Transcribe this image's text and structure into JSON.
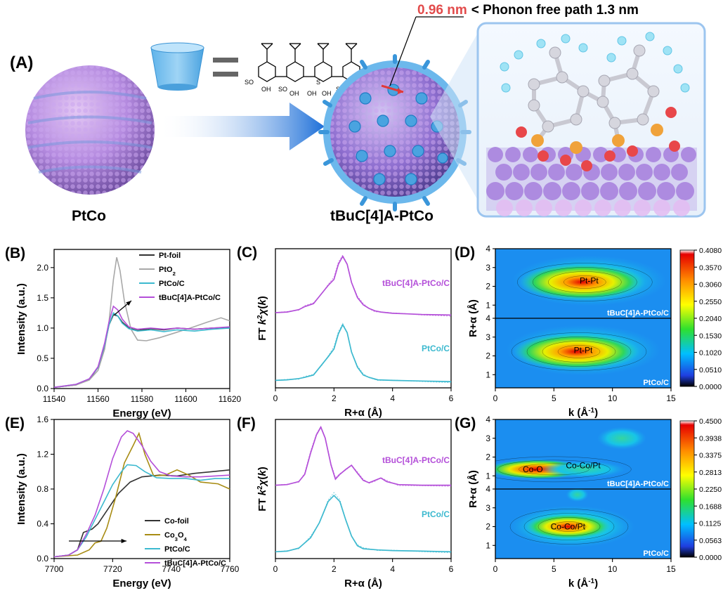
{
  "top": {
    "panel_label": "(A)",
    "left_caption": "PtCo",
    "right_caption": "tBuC[4]A-PtCo",
    "distance_value": "0.96 nm",
    "distance_text": "< Phonon free path 1.3 nm",
    "structure_labels": [
      "SO",
      "OH",
      "SO",
      "OH",
      "OH",
      "S",
      "SO",
      "OH"
    ]
  },
  "chart_data": [
    {
      "id": "B",
      "type": "line",
      "panel_label": "(B)",
      "xlabel": "Energy (eV)",
      "ylabel": "Intensity (a.u.)",
      "xlim": [
        11540,
        11620
      ],
      "ylim": [
        0,
        2.3
      ],
      "xticks": [
        11540,
        11560,
        11580,
        11600,
        11620
      ],
      "yticks": [
        0.0,
        0.5,
        1.0,
        1.5,
        2.0
      ],
      "legend": [
        "Pt-foil",
        "PtO2",
        "PtCo/C",
        "tBuC[4]A-PtCo/C"
      ],
      "series": [
        {
          "name": "Pt-foil",
          "color": "#333333",
          "points": [
            [
              11540,
              0.02
            ],
            [
              11550,
              0.06
            ],
            [
              11556,
              0.15
            ],
            [
              11560,
              0.35
            ],
            [
              11563,
              0.7
            ],
            [
              11565,
              1.05
            ],
            [
              11567,
              1.22
            ],
            [
              11569,
              1.2
            ],
            [
              11571,
              1.1
            ],
            [
              11574,
              1.0
            ],
            [
              11578,
              0.96
            ],
            [
              11584,
              0.99
            ],
            [
              11590,
              0.97
            ],
            [
              11596,
              1.0
            ],
            [
              11604,
              0.98
            ],
            [
              11612,
              1.0
            ],
            [
              11620,
              1.01
            ]
          ]
        },
        {
          "name": "PtO2",
          "color": "#a8a8a8",
          "points": [
            [
              11540,
              0.02
            ],
            [
              11550,
              0.06
            ],
            [
              11556,
              0.14
            ],
            [
              11560,
              0.3
            ],
            [
              11563,
              0.65
            ],
            [
              11565,
              1.1
            ],
            [
              11567,
              1.8
            ],
            [
              11568.5,
              2.17
            ],
            [
              11570,
              1.95
            ],
            [
              11572,
              1.45
            ],
            [
              11575,
              0.98
            ],
            [
              11578,
              0.8
            ],
            [
              11582,
              0.79
            ],
            [
              11588,
              0.84
            ],
            [
              11595,
              0.92
            ],
            [
              11602,
              1.0
            ],
            [
              11610,
              1.1
            ],
            [
              11616,
              1.17
            ],
            [
              11620,
              1.12
            ]
          ]
        },
        {
          "name": "PtCo/C",
          "color": "#3cb9cf",
          "points": [
            [
              11540,
              0.02
            ],
            [
              11550,
              0.07
            ],
            [
              11556,
              0.16
            ],
            [
              11560,
              0.35
            ],
            [
              11563,
              0.72
            ],
            [
              11565,
              1.05
            ],
            [
              11567,
              1.25
            ],
            [
              11569,
              1.2
            ],
            [
              11571,
              1.08
            ],
            [
              11574,
              0.99
            ],
            [
              11578,
              0.95
            ],
            [
              11584,
              0.97
            ],
            [
              11590,
              0.94
            ],
            [
              11596,
              0.97
            ],
            [
              11604,
              0.95
            ],
            [
              11612,
              0.98
            ],
            [
              11620,
              1.0
            ]
          ]
        },
        {
          "name": "tBuC[4]A-PtCo/C",
          "color": "#b44fd9",
          "points": [
            [
              11540,
              0.02
            ],
            [
              11550,
              0.07
            ],
            [
              11556,
              0.16
            ],
            [
              11560,
              0.36
            ],
            [
              11563,
              0.75
            ],
            [
              11565,
              1.1
            ],
            [
              11567,
              1.36
            ],
            [
              11569,
              1.3
            ],
            [
              11571,
              1.15
            ],
            [
              11574,
              1.02
            ],
            [
              11578,
              0.98
            ],
            [
              11584,
              1.0
            ],
            [
              11590,
              0.98
            ],
            [
              11596,
              1.0
            ],
            [
              11604,
              0.98
            ],
            [
              11612,
              1.0
            ],
            [
              11620,
              1.02
            ]
          ]
        }
      ]
    },
    {
      "id": "C",
      "type": "line",
      "panel_label": "(C)",
      "xlabel": "R+α (Å)",
      "ylabel": "FT k²χ(k)",
      "xlim": [
        0,
        6
      ],
      "xticks": [
        0,
        2,
        4,
        6
      ],
      "series": [
        {
          "name": "tBuC[4]A-PtCo/C",
          "color": "#b44fd9",
          "offset": 1.1,
          "points": [
            [
              0,
              0.05
            ],
            [
              0.4,
              0.06
            ],
            [
              0.8,
              0.1
            ],
            [
              1.0,
              0.15
            ],
            [
              1.3,
              0.2
            ],
            [
              1.6,
              0.38
            ],
            [
              1.8,
              0.5
            ],
            [
              2.0,
              0.6
            ],
            [
              2.15,
              0.85
            ],
            [
              2.3,
              0.98
            ],
            [
              2.45,
              0.85
            ],
            [
              2.6,
              0.55
            ],
            [
              2.8,
              0.3
            ],
            [
              3.0,
              0.18
            ],
            [
              3.2,
              0.12
            ],
            [
              3.4,
              0.08
            ],
            [
              3.6,
              0.06
            ],
            [
              4.0,
              0.04
            ],
            [
              4.5,
              0.03
            ],
            [
              5.0,
              0.02
            ],
            [
              6.0,
              0.01
            ]
          ]
        },
        {
          "name": "PtCo/C",
          "color": "#3cb9cf",
          "offset": 0,
          "points": [
            [
              0,
              0.03
            ],
            [
              0.4,
              0.04
            ],
            [
              0.8,
              0.06
            ],
            [
              1.0,
              0.08
            ],
            [
              1.3,
              0.12
            ],
            [
              1.6,
              0.3
            ],
            [
              1.8,
              0.42
            ],
            [
              2.0,
              0.55
            ],
            [
              2.15,
              0.8
            ],
            [
              2.3,
              0.95
            ],
            [
              2.45,
              0.82
            ],
            [
              2.6,
              0.5
            ],
            [
              2.8,
              0.25
            ],
            [
              3.0,
              0.12
            ],
            [
              3.2,
              0.08
            ],
            [
              3.5,
              0.04
            ],
            [
              4.0,
              0.03
            ],
            [
              5.0,
              0.02
            ],
            [
              6.0,
              0.01
            ]
          ]
        }
      ]
    },
    {
      "id": "D",
      "type": "heatmap",
      "panel_label": "(D)",
      "xlabel": "k (Å⁻¹)",
      "ylabel": "R+α (Å)",
      "xlim": [
        0,
        15
      ],
      "xticks": [
        0,
        5,
        10,
        15
      ],
      "yticks": [
        1,
        2,
        3,
        4
      ],
      "colorbar_ticks": [
        "0.4080",
        "0.3570",
        "0.3060",
        "0.2550",
        "0.2040",
        "0.1530",
        "0.1020",
        "0.0510",
        "0.0000"
      ],
      "maps": [
        {
          "name": "tBuC[4]A-PtCo/C",
          "label": "Pt-Pt",
          "center_k": 8.0,
          "center_r": 2.3
        },
        {
          "name": "PtCo/C",
          "label": "Pt-Pt",
          "center_k": 7.5,
          "center_r": 2.3
        }
      ]
    },
    {
      "id": "E",
      "type": "line",
      "panel_label": "(E)",
      "xlabel": "Energy (eV)",
      "ylabel": "Intensity (a.u.)",
      "xlim": [
        7700,
        7760
      ],
      "ylim": [
        0,
        1.6
      ],
      "xticks": [
        7700,
        7720,
        7740,
        7760
      ],
      "yticks": [
        0.0,
        0.4,
        0.8,
        1.2,
        1.6
      ],
      "legend": [
        "Co-foil",
        "Co3O4",
        "PtCo/C",
        "tBuC[4]A-PtCo/C"
      ],
      "series": [
        {
          "name": "Co-foil",
          "color": "#333333",
          "points": [
            [
              7700,
              0.02
            ],
            [
              7705,
              0.04
            ],
            [
              7708,
              0.1
            ],
            [
              7710,
              0.3
            ],
            [
              7713,
              0.34
            ],
            [
              7715,
              0.4
            ],
            [
              7718,
              0.55
            ],
            [
              7722,
              0.75
            ],
            [
              7726,
              0.88
            ],
            [
              7730,
              0.94
            ],
            [
              7736,
              0.96
            ],
            [
              7742,
              0.95
            ],
            [
              7748,
              0.98
            ],
            [
              7754,
              1.0
            ],
            [
              7760,
              1.02
            ]
          ]
        },
        {
          "name": "Co3O4",
          "color": "#a88c14",
          "points": [
            [
              7700,
              0.02
            ],
            [
              7708,
              0.04
            ],
            [
              7712,
              0.1
            ],
            [
              7714,
              0.18
            ],
            [
              7716,
              0.2
            ],
            [
              7718,
              0.35
            ],
            [
              7721,
              0.7
            ],
            [
              7724,
              1.1
            ],
            [
              7727,
              1.3
            ],
            [
              7729,
              1.44
            ],
            [
              7731,
              1.2
            ],
            [
              7734,
              0.95
            ],
            [
              7738,
              0.96
            ],
            [
              7742,
              1.02
            ],
            [
              7746,
              0.96
            ],
            [
              7750,
              0.88
            ],
            [
              7756,
              0.86
            ],
            [
              7760,
              0.8
            ]
          ]
        },
        {
          "name": "PtCo/C",
          "color": "#3cb9cf",
          "points": [
            [
              7700,
              0.02
            ],
            [
              7705,
              0.04
            ],
            [
              7708,
              0.1
            ],
            [
              7711,
              0.25
            ],
            [
              7714,
              0.45
            ],
            [
              7717,
              0.65
            ],
            [
              7720,
              0.85
            ],
            [
              7723,
              1.0
            ],
            [
              7725,
              1.08
            ],
            [
              7728,
              1.07
            ],
            [
              7731,
              1.0
            ],
            [
              7735,
              0.93
            ],
            [
              7740,
              0.92
            ],
            [
              7745,
              0.92
            ],
            [
              7750,
              0.9
            ],
            [
              7755,
              0.92
            ],
            [
              7760,
              0.92
            ]
          ]
        },
        {
          "name": "tBuC[4]A-PtCo/C",
          "color": "#b44fd9",
          "points": [
            [
              7700,
              0.02
            ],
            [
              7705,
              0.04
            ],
            [
              7708,
              0.1
            ],
            [
              7711,
              0.28
            ],
            [
              7714,
              0.5
            ],
            [
              7717,
              0.8
            ],
            [
              7720,
              1.15
            ],
            [
              7723,
              1.4
            ],
            [
              7725,
              1.47
            ],
            [
              7727,
              1.44
            ],
            [
              7730,
              1.3
            ],
            [
              7733,
              1.12
            ],
            [
              7736,
              1.0
            ],
            [
              7740,
              0.95
            ],
            [
              7745,
              0.94
            ],
            [
              7750,
              0.94
            ],
            [
              7755,
              0.95
            ],
            [
              7760,
              0.96
            ]
          ]
        }
      ]
    },
    {
      "id": "F",
      "type": "line",
      "panel_label": "(F)",
      "xlabel": "R+α (Å)",
      "ylabel": "FT k²χ(k)",
      "xlim": [
        0,
        6
      ],
      "xticks": [
        0,
        2,
        4,
        6
      ],
      "series": [
        {
          "name": "tBuC[4]A-PtCo/C",
          "color": "#b44fd9",
          "offset": 1.1,
          "points": [
            [
              0,
              0.02
            ],
            [
              0.4,
              0.03
            ],
            [
              0.8,
              0.08
            ],
            [
              1.0,
              0.2
            ],
            [
              1.2,
              0.55
            ],
            [
              1.4,
              0.85
            ],
            [
              1.55,
              0.98
            ],
            [
              1.7,
              0.8
            ],
            [
              1.9,
              0.35
            ],
            [
              2.05,
              0.12
            ],
            [
              2.2,
              0.2
            ],
            [
              2.4,
              0.28
            ],
            [
              2.6,
              0.35
            ],
            [
              2.8,
              0.22
            ],
            [
              3.0,
              0.1
            ],
            [
              3.2,
              0.06
            ],
            [
              3.4,
              0.1
            ],
            [
              3.6,
              0.14
            ],
            [
              3.8,
              0.08
            ],
            [
              4.2,
              0.03
            ],
            [
              5.0,
              0.02
            ],
            [
              6.0,
              0.02
            ]
          ]
        },
        {
          "name": "PtCo/C",
          "color": "#3cb9cf",
          "offset": 0,
          "points": [
            [
              0,
              0.02
            ],
            [
              0.4,
              0.03
            ],
            [
              0.8,
              0.08
            ],
            [
              1.2,
              0.25
            ],
            [
              1.5,
              0.5
            ],
            [
              1.8,
              0.85
            ],
            [
              2.0,
              0.95
            ],
            [
              2.2,
              0.85
            ],
            [
              2.4,
              0.55
            ],
            [
              2.6,
              0.28
            ],
            [
              2.8,
              0.12
            ],
            [
              3.0,
              0.07
            ],
            [
              3.5,
              0.05
            ],
            [
              4.0,
              0.04
            ],
            [
              5.0,
              0.03
            ],
            [
              6.0,
              0.02
            ]
          ]
        }
      ]
    },
    {
      "id": "G",
      "type": "heatmap",
      "panel_label": "(G)",
      "xlabel": "k (Å⁻¹)",
      "ylabel": "R+α (Å)",
      "xlim": [
        0,
        15
      ],
      "xticks": [
        0,
        5,
        10,
        15
      ],
      "yticks": [
        1,
        2,
        3,
        4
      ],
      "colorbar_ticks": [
        "0.4500",
        "0.3938",
        "0.3375",
        "0.2813",
        "0.2250",
        "0.1688",
        "0.1125",
        "0.0563",
        "0.0000"
      ],
      "maps": [
        {
          "name": "tBuC[4]A-PtCo/C",
          "labels": [
            "Co-O",
            "Co-Co/Pt"
          ]
        },
        {
          "name": "PtCo/C",
          "labels": [
            "Co-Co/Pt"
          ]
        }
      ]
    }
  ]
}
